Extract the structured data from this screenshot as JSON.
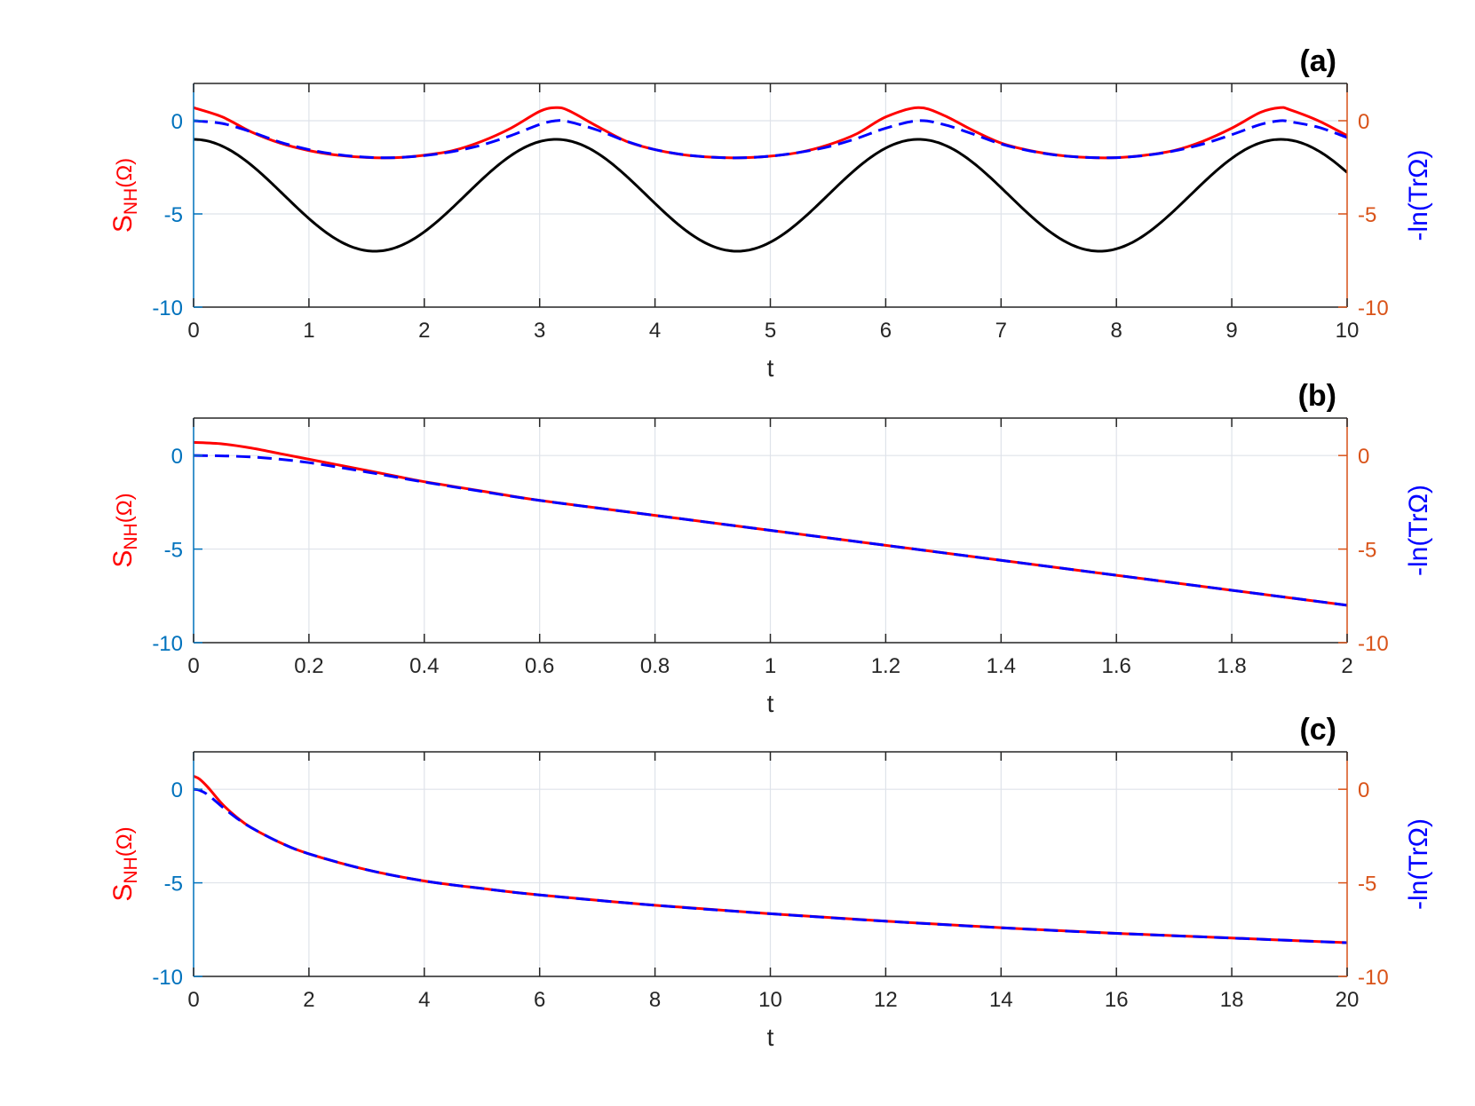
{
  "colors": {
    "left_axis": "#0072BD",
    "right_axis": "#D95319",
    "grid": "#dfe3ea",
    "black_axis": "#262626",
    "series_red": "#ff0000",
    "series_blue": "#0000ff",
    "series_black": "#000000"
  },
  "chart_data": [
    {
      "type": "line",
      "panel_label": "(a)",
      "xlabel": "t",
      "ylabel_left": {
        "main": "S",
        "sub": "NH",
        "rest": "(Ω)"
      },
      "ylabel_right": "-ln(TrΩ)",
      "xlim": [
        0,
        10
      ],
      "ylim": [
        -10,
        2
      ],
      "xticks": [
        "0",
        "1",
        "2",
        "3",
        "4",
        "5",
        "6",
        "7",
        "8",
        "9",
        "10"
      ],
      "yticks_left": [
        "-10",
        "-5",
        "0"
      ],
      "yticks_right": [
        "-10",
        "-5",
        "0"
      ],
      "series": [
        {
          "style": "solid",
          "color": "red",
          "x": [
            0,
            0.25,
            0.5,
            0.75,
            1,
            1.25,
            1.5,
            1.75,
            2,
            2.25,
            2.5,
            2.75,
            3,
            3.14,
            3.25,
            3.5,
            3.75,
            4,
            4.25,
            4.5,
            4.75,
            5,
            5.25,
            5.5,
            5.75,
            6,
            6.28,
            6.5,
            6.75,
            7,
            7.25,
            7.5,
            7.75,
            8,
            8.25,
            8.5,
            8.75,
            9,
            9.25,
            9.42,
            9.5,
            9.75,
            10
          ],
          "y": [
            0.7,
            0.2,
            -0.6,
            -1.2,
            -1.6,
            -1.85,
            -1.97,
            -1.98,
            -1.85,
            -1.6,
            -1.1,
            -0.4,
            0.5,
            0.7,
            0.55,
            -0.3,
            -1.1,
            -1.55,
            -1.83,
            -1.96,
            -1.99,
            -1.9,
            -1.7,
            -1.3,
            -0.7,
            0.2,
            0.7,
            0.3,
            -0.5,
            -1.2,
            -1.6,
            -1.85,
            -1.97,
            -1.98,
            -1.85,
            -1.6,
            -1.1,
            -0.4,
            0.45,
            0.7,
            0.6,
            0,
            -0.8
          ]
        },
        {
          "style": "dashed",
          "color": "blue",
          "x": [
            0,
            0.25,
            0.5,
            0.75,
            1,
            1.25,
            1.5,
            1.75,
            2,
            2.25,
            2.5,
            2.75,
            3,
            3.14,
            3.25,
            3.5,
            3.75,
            4,
            4.25,
            4.5,
            4.75,
            5,
            5.25,
            5.5,
            5.75,
            6,
            6.28,
            6.5,
            6.75,
            7,
            7.25,
            7.5,
            7.75,
            8,
            8.25,
            8.5,
            8.75,
            9,
            9.25,
            9.42,
            9.5,
            9.75,
            10
          ],
          "y": [
            0,
            -0.15,
            -0.6,
            -1.15,
            -1.55,
            -1.82,
            -1.96,
            -1.98,
            -1.87,
            -1.65,
            -1.3,
            -0.8,
            -0.2,
            0,
            -0.05,
            -0.5,
            -1.1,
            -1.55,
            -1.82,
            -1.96,
            -1.99,
            -1.9,
            -1.7,
            -1.4,
            -0.95,
            -0.4,
            0,
            -0.2,
            -0.7,
            -1.25,
            -1.62,
            -1.86,
            -1.97,
            -1.98,
            -1.86,
            -1.62,
            -1.25,
            -0.75,
            -0.2,
            0,
            -0.05,
            -0.35,
            -0.9
          ]
        },
        {
          "style": "solid",
          "color": "black",
          "function": "-4+3cos(2t)",
          "x_range": [
            0,
            10
          ]
        }
      ]
    },
    {
      "type": "line",
      "panel_label": "(b)",
      "xlabel": "t",
      "ylabel_left": {
        "main": "S",
        "sub": "NH",
        "rest": "(Ω)"
      },
      "ylabel_right": "-ln(TrΩ)",
      "xlim": [
        0,
        2
      ],
      "ylim": [
        -10,
        2
      ],
      "xticks": [
        "0",
        "0.2",
        "0.4",
        "0.6",
        "0.8",
        "1",
        "1.2",
        "1.4",
        "1.6",
        "1.8",
        "2"
      ],
      "yticks_left": [
        "-10",
        "-5",
        "0"
      ],
      "yticks_right": [
        "-10",
        "-5",
        "0"
      ],
      "series": [
        {
          "style": "solid",
          "color": "red",
          "x": [
            0,
            0.05,
            0.1,
            0.15,
            0.2,
            0.25,
            0.3,
            0.35,
            0.4,
            0.5,
            0.6,
            0.8,
            1,
            1.2,
            1.4,
            1.6,
            1.8,
            2
          ],
          "y": [
            0.7,
            0.62,
            0.4,
            0.1,
            -0.2,
            -0.5,
            -0.8,
            -1.1,
            -1.4,
            -1.9,
            -2.4,
            -3.2,
            -4,
            -4.8,
            -5.6,
            -6.4,
            -7.2,
            -8
          ]
        },
        {
          "style": "dashed",
          "color": "blue",
          "x": [
            0,
            0.05,
            0.1,
            0.15,
            0.2,
            0.25,
            0.3,
            0.35,
            0.4,
            0.5,
            0.6,
            0.8,
            1,
            1.2,
            1.4,
            1.6,
            1.8,
            2
          ],
          "y": [
            0,
            -0.02,
            -0.08,
            -0.2,
            -0.38,
            -0.62,
            -0.88,
            -1.15,
            -1.42,
            -1.92,
            -2.4,
            -3.2,
            -4,
            -4.8,
            -5.6,
            -6.4,
            -7.2,
            -8
          ]
        }
      ]
    },
    {
      "type": "line",
      "panel_label": "(c)",
      "xlabel": "t",
      "ylabel_left": {
        "main": "S",
        "sub": "NH",
        "rest": "(Ω)"
      },
      "ylabel_right": "-ln(TrΩ)",
      "xlim": [
        0,
        20
      ],
      "ylim": [
        -10,
        2
      ],
      "xticks": [
        "0",
        "2",
        "4",
        "6",
        "8",
        "10",
        "12",
        "14",
        "16",
        "18",
        "20"
      ],
      "yticks_left": [
        "-10",
        "-5",
        "0"
      ],
      "yticks_right": [
        "-10",
        "-5",
        "0"
      ],
      "series": [
        {
          "style": "solid",
          "color": "red",
          "x": [
            0,
            0.1,
            0.25,
            0.5,
            0.75,
            1,
            1.5,
            2,
            3,
            4,
            5,
            6,
            8,
            10,
            12,
            14,
            16,
            18,
            20
          ],
          "y": [
            0.7,
            0.55,
            0.1,
            -0.8,
            -1.5,
            -2.05,
            -2.85,
            -3.45,
            -4.3,
            -4.9,
            -5.3,
            -5.65,
            -6.2,
            -6.65,
            -7.05,
            -7.4,
            -7.7,
            -7.95,
            -8.2
          ]
        },
        {
          "style": "dashed",
          "color": "blue",
          "x": [
            0,
            0.1,
            0.25,
            0.5,
            0.75,
            1,
            1.5,
            2,
            3,
            4,
            5,
            6,
            8,
            10,
            12,
            14,
            16,
            18,
            20
          ],
          "y": [
            0,
            -0.05,
            -0.3,
            -0.95,
            -1.55,
            -2.05,
            -2.85,
            -3.45,
            -4.3,
            -4.9,
            -5.3,
            -5.65,
            -6.2,
            -6.65,
            -7.05,
            -7.4,
            -7.7,
            -7.95,
            -8.2
          ]
        }
      ]
    }
  ]
}
